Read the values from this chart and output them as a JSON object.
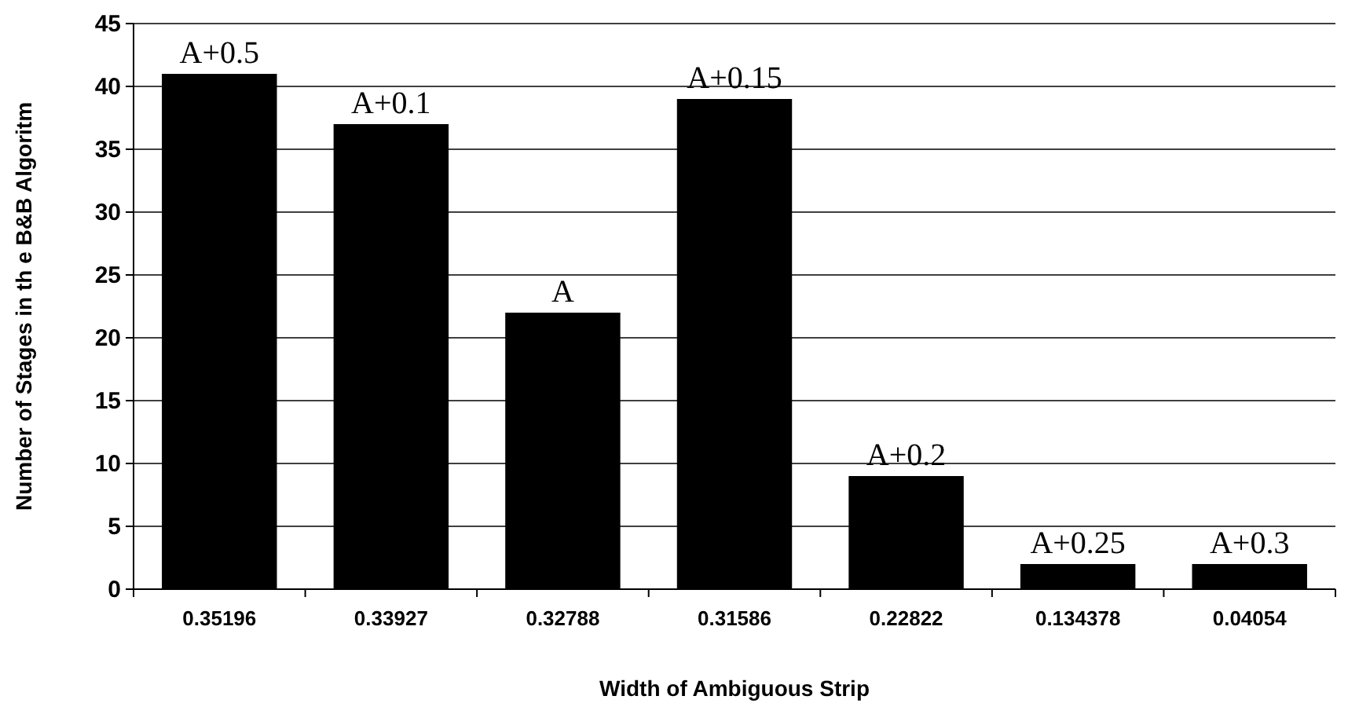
{
  "chart_data": {
    "type": "bar",
    "xlabel": "Width of Ambiguous Strip",
    "ylabel": "Number of Stages in th e B&B Algoritm",
    "categories": [
      "0.35196",
      "0.33927",
      "0.32788",
      "0.31586",
      "0.22822",
      "0.134378",
      "0.04054"
    ],
    "values": [
      41,
      37,
      22,
      39,
      9,
      2,
      2
    ],
    "color": "#000000",
    "ylim": [
      0,
      45
    ],
    "yticks": [
      0,
      5,
      10,
      15,
      20,
      25,
      30,
      35,
      40,
      45
    ],
    "grid": "y",
    "annotations": [
      {
        "text": "A+0.5",
        "x": "0.35196",
        "y": 41
      },
      {
        "text": "A+0.1",
        "x": "0.33927",
        "y": 37
      },
      {
        "text": "A",
        "x": "0.32788",
        "y": 22
      },
      {
        "text": "A+0.15",
        "x": "0.31586",
        "y": 39
      },
      {
        "text": "A+0.2",
        "x": "0.22822",
        "y": 9
      },
      {
        "text": "A+0.25",
        "x": "0.134378",
        "y": 2
      },
      {
        "text": "A+0.3",
        "x": "0.04054",
        "y": 2
      }
    ]
  }
}
